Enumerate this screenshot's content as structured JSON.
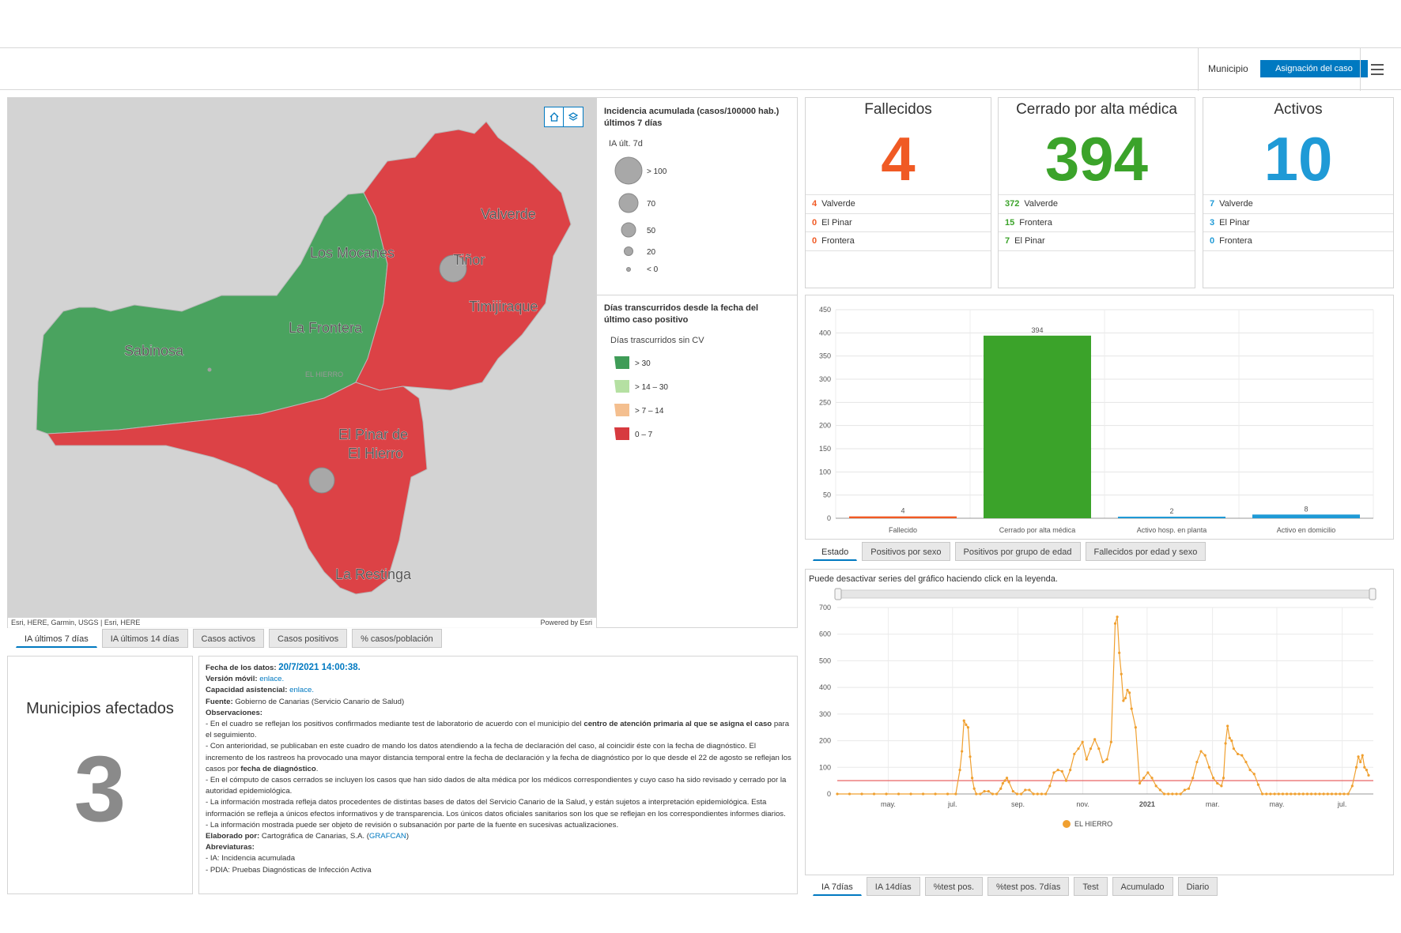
{
  "header": {
    "municipio_label": "Municipio",
    "asignacion_button": "Asignación del caso"
  },
  "map": {
    "labels": [
      "Valverde",
      "Los Mocanes",
      "Tiñor",
      "Tiñor",
      "Timijiraque",
      "La Frontera",
      "Sabinosa",
      "EL HIERRO",
      "El Pinar de",
      "El Hierro",
      "La Restinga"
    ],
    "attribution_left": "Esri, HERE, Garmin, USGS | Esri, HERE",
    "attribution_right": "Powered by Esri",
    "colors": {
      "green": "#4aa35f",
      "red": "#dc4246",
      "bg": "#d3d3d3"
    }
  },
  "legend": {
    "ia_title": "Incidencia acumulada (casos/100000 hab.) últimos 7 días",
    "ia_sub": "IA últ. 7d",
    "ia_items": [
      "> 100",
      "70",
      "50",
      "20",
      "< 0"
    ],
    "dias_title": "Días transcurridos desde la fecha del último caso positivo",
    "dias_sub": "Días trascurridos sin CV",
    "dias_items": [
      {
        "label": "> 30",
        "color": "#3f9c57"
      },
      {
        "label": "> 14 – 30",
        "color": "#b5e0a2"
      },
      {
        "label": "> 7 – 14",
        "color": "#f4bf8f"
      },
      {
        "label": "0 – 7",
        "color": "#d73a3f"
      }
    ]
  },
  "map_tabs": [
    "IA últimos 7 días",
    "IA últimos 14 días",
    "Casos activos",
    "Casos positivos",
    "% casos/población"
  ],
  "municipios": {
    "title": "Municipios afectados",
    "value": "3"
  },
  "info": {
    "fecha_label": "Fecha de los datos:",
    "fecha_value": "20/7/2021 14:00:38.",
    "movil_label": "Versión móvil:",
    "movil_link": "enlace.",
    "capacidad_label": "Capacidad asistencial:",
    "capacidad_link": "enlace.",
    "fuente_label": "Fuente:",
    "fuente_value": "Gobierno de Canarias (Servicio Canario de Salud)",
    "obs_label": "Observaciones:",
    "obs1a": "- En el cuadro se reflejan los positivos confirmados mediante test de laboratorio de acuerdo con el municipio del",
    "obs1b": "centro de atención primaria al que se asigna el caso",
    "obs1c": "para el seguimiento.",
    "obs2a": "- Con anterioridad, se publicaban en este cuadro de mando los datos atendiendo a la fecha de declaración del caso, al coincidir éste con la fecha de diagnóstico. El incremento de los rastreos ha provocado una mayor distancia temporal entre la fecha de declaración y la fecha de diagnóstico por lo que desde el 22 de agosto se reflejan los casos por",
    "obs2b": "fecha de diagnóstico",
    "obs3": "- En el cómputo de casos cerrados se incluyen los casos que han sido dados de alta médica por los médicos correspondientes y cuyo caso ha sido revisado y cerrado por la autoridad epidemiológica.",
    "obs4": "- La información mostrada refleja datos procedentes de distintas bases de datos del Servicio Canario de la Salud, y están sujetos a interpretación epidemiológica. Esta información se refleja a únicos efectos informativos y de transparencia. Los únicos datos oficiales sanitarios son los que se reflejan en los correspondientes informes diarios.",
    "obs5": "- La información mostrada puede ser objeto de revisión o subsanación por parte de la fuente en sucesivas actualizaciones.",
    "elab_label": "Elaborado por:",
    "elab_value": "Cartográfica de Canarias, S.A.",
    "elab_link": "GRAFCAN",
    "abrev_label": "Abreviaturas:",
    "abrev1": "- IA: Incidencia acumulada",
    "abrev2": "- PDIA:  Pruebas Diagnósticas de Infección Activa"
  },
  "kpis": [
    {
      "title": "Fallecidos",
      "value": "4",
      "color": "#f05a24",
      "rows": [
        {
          "n": "4",
          "name": "Valverde"
        },
        {
          "n": "0",
          "name": "El Pinar"
        },
        {
          "n": "0",
          "name": "Frontera"
        }
      ]
    },
    {
      "title": "Cerrado por alta médica",
      "value": "394",
      "color": "#3ba32a",
      "rows": [
        {
          "n": "372",
          "name": "Valverde"
        },
        {
          "n": "15",
          "name": "Frontera"
        },
        {
          "n": "7",
          "name": "El Pinar"
        }
      ]
    },
    {
      "title": "Activos",
      "value": "10",
      "color": "#1f9ad6",
      "rows": [
        {
          "n": "7",
          "name": "Valverde"
        },
        {
          "n": "3",
          "name": "El Pinar"
        },
        {
          "n": "0",
          "name": "Frontera"
        }
      ]
    }
  ],
  "estado_tabs": [
    "Estado",
    "Positivos por sexo",
    "Positivos por grupo de edad",
    "Fallecidos por edad y sexo"
  ],
  "line_note": "Puede desactivar series del gráfico haciendo click en la leyenda.",
  "line_tabs": [
    "IA 7días",
    "IA 14días",
    "%test pos.",
    "%test pos. 7días",
    "Test",
    "Acumulado",
    "Diario"
  ],
  "chart_data": [
    {
      "type": "bar",
      "title": "",
      "categories": [
        "Fallecido",
        "Cerrado por alta médica",
        "Activo hosp. en planta",
        "Activo en domicilio"
      ],
      "values": [
        4,
        394,
        2,
        8
      ],
      "colors": [
        "#f05a24",
        "#3ba32a",
        "#1f9ad6",
        "#1f9ad6"
      ],
      "ylim": [
        0,
        450
      ],
      "yticks": [
        0,
        50,
        100,
        150,
        200,
        250,
        300,
        350,
        400,
        450
      ],
      "grid": true
    },
    {
      "type": "line",
      "title": "",
      "series": [
        {
          "name": "EL HIERRO",
          "color": "#f0a030",
          "x": [
            0,
            6,
            12,
            18,
            24,
            30,
            36,
            42,
            48,
            54,
            58,
            60,
            61,
            62,
            63,
            64,
            65,
            66,
            67,
            68,
            70,
            72,
            74,
            76,
            78,
            80,
            81,
            82,
            83,
            84,
            86,
            88,
            90,
            92,
            94,
            96,
            98,
            100,
            102,
            104,
            106,
            108,
            110,
            112,
            114,
            116,
            118,
            120,
            122,
            124,
            126,
            128,
            130,
            132,
            134,
            136,
            137,
            138,
            139,
            140,
            141,
            142,
            143,
            144,
            146,
            148,
            150,
            152,
            154,
            156,
            158,
            160,
            162,
            164,
            166,
            168,
            170,
            172,
            174,
            176,
            178,
            180,
            182,
            184,
            186,
            188,
            189,
            190,
            191,
            192,
            193,
            194,
            196,
            198,
            200,
            202,
            204,
            206,
            208,
            210,
            212,
            214,
            216,
            218,
            220,
            222,
            224,
            226,
            228,
            230,
            232,
            234,
            236,
            238,
            240,
            242,
            244,
            246,
            248,
            250,
            252,
            254,
            255,
            256,
            257,
            258,
            259,
            260
          ],
          "y": [
            0,
            0,
            0,
            0,
            0,
            0,
            0,
            0,
            0,
            0,
            0,
            90,
            160,
            275,
            260,
            250,
            140,
            60,
            20,
            0,
            0,
            10,
            10,
            0,
            0,
            20,
            40,
            50,
            60,
            45,
            10,
            0,
            0,
            15,
            15,
            0,
            0,
            0,
            0,
            30,
            80,
            90,
            85,
            50,
            90,
            150,
            170,
            195,
            130,
            170,
            205,
            170,
            120,
            130,
            195,
            640,
            665,
            530,
            450,
            350,
            360,
            390,
            380,
            320,
            250,
            40,
            60,
            80,
            60,
            30,
            15,
            0,
            0,
            0,
            0,
            0,
            15,
            20,
            60,
            120,
            160,
            145,
            100,
            60,
            40,
            30,
            60,
            190,
            255,
            210,
            200,
            170,
            150,
            145,
            120,
            90,
            75,
            35,
            0,
            0,
            0,
            0,
            0,
            0,
            0,
            0,
            0,
            0,
            0,
            0,
            0,
            0,
            0,
            0,
            0,
            0,
            0,
            0,
            0,
            0,
            30,
            100,
            140,
            120,
            145,
            100,
            90,
            70
          ]
        }
      ],
      "reference_line": {
        "value": 50,
        "color": "#e86464"
      },
      "ylim": [
        0,
        700
      ],
      "yticks": [
        0,
        100,
        200,
        300,
        400,
        500,
        600,
        700
      ],
      "xticks": [
        {
          "label": "may.",
          "pos": 0.095
        },
        {
          "label": "jul.",
          "pos": 0.215
        },
        {
          "label": "sep.",
          "pos": 0.337
        },
        {
          "label": "nov.",
          "pos": 0.458
        },
        {
          "label": "2021",
          "pos": 0.578,
          "bold": true
        },
        {
          "label": "mar.",
          "pos": 0.7
        },
        {
          "label": "may.",
          "pos": 0.82
        },
        {
          "label": "jul.",
          "pos": 0.942
        }
      ],
      "legend": "EL HIERRO",
      "grid": true
    }
  ]
}
